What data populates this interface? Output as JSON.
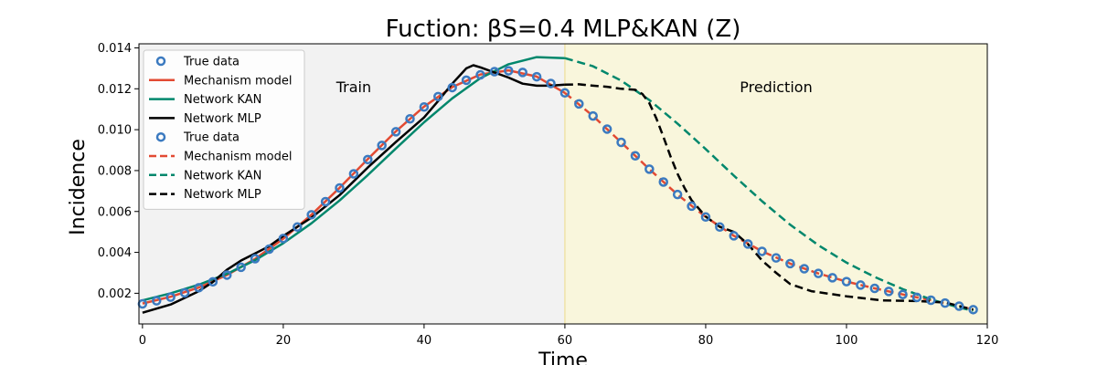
{
  "chart_data": {
    "type": "line",
    "title": "Fuction: βS=0.4 MLP&KAN (Z)",
    "xlabel": "Time",
    "ylabel": "Incidence",
    "xlim": [
      -0.5,
      120
    ],
    "ylim": [
      0.0005,
      0.0142
    ],
    "xticks": [
      0,
      20,
      40,
      60,
      80,
      100,
      120
    ],
    "yticks": [
      0.002,
      0.004,
      0.006,
      0.008,
      0.01,
      0.012,
      0.014
    ],
    "ytick_format": 3,
    "grid": false,
    "legend_position": "top-left",
    "regions": [
      {
        "label": "Train",
        "x0": -0.5,
        "x1": 60,
        "color": "#f2f2f2",
        "label_x": 30,
        "label_y": 0.0121
      },
      {
        "label": "Prediction",
        "x0": 60,
        "x1": 120,
        "color": "#f9f6dc",
        "label_x": 90,
        "label_y": 0.0121
      }
    ],
    "true_data": {
      "x": [
        0,
        2,
        4,
        6,
        8,
        10,
        12,
        14,
        16,
        18,
        20,
        22,
        24,
        26,
        28,
        30,
        32,
        34,
        36,
        38,
        40,
        42,
        44,
        46,
        48,
        50,
        52,
        54,
        56,
        58,
        60,
        62,
        64,
        66,
        68,
        70,
        72,
        74,
        76,
        78,
        80,
        82,
        84,
        86,
        88,
        90,
        92,
        94,
        96,
        98,
        100,
        102,
        104,
        106,
        108,
        110,
        112,
        114,
        116,
        118
      ],
      "y": [
        0.00148,
        0.00163,
        0.00181,
        0.00202,
        0.00227,
        0.00256,
        0.00289,
        0.00327,
        0.00369,
        0.00416,
        0.00468,
        0.00524,
        0.00584,
        0.00648,
        0.00715,
        0.00784,
        0.00854,
        0.00923,
        0.0099,
        0.01053,
        0.01111,
        0.01162,
        0.01206,
        0.01242,
        0.01268,
        0.01284,
        0.01288,
        0.0128,
        0.01259,
        0.01226,
        0.0118,
        0.01126,
        0.01067,
        0.01003,
        0.00938,
        0.00872,
        0.00807,
        0.00744,
        0.00683,
        0.00626,
        0.00573,
        0.00524,
        0.00481,
        0.00441,
        0.00405,
        0.00373,
        0.00345,
        0.0032,
        0.00297,
        0.00276,
        0.00257,
        0.0024,
        0.00224,
        0.00209,
        0.00194,
        0.0018,
        0.00166,
        0.00152,
        0.00137,
        0.0012
      ]
    },
    "series": [
      {
        "name": "Mechanism model",
        "color": "#e24a33",
        "dash": false,
        "x": [
          0,
          4,
          8,
          12,
          16,
          20,
          24,
          28,
          32,
          36,
          40,
          44,
          48,
          52,
          56,
          60
        ],
        "y": [
          0.0015,
          0.00183,
          0.00228,
          0.00289,
          0.00368,
          0.00467,
          0.00584,
          0.00716,
          0.00856,
          0.00992,
          0.01113,
          0.01208,
          0.0127,
          0.0129,
          0.0126,
          0.0118
        ]
      },
      {
        "name": "Network KAN",
        "color": "#00876c",
        "dash": false,
        "x": [
          0,
          4,
          8,
          12,
          16,
          20,
          24,
          28,
          32,
          36,
          40,
          44,
          48,
          52,
          56,
          60
        ],
        "y": [
          0.00165,
          0.002,
          0.00242,
          0.00295,
          0.00362,
          0.00445,
          0.00542,
          0.00654,
          0.00778,
          0.00908,
          0.01036,
          0.01153,
          0.01252,
          0.0132,
          0.01355,
          0.0135
        ]
      },
      {
        "name": "Network MLP",
        "color": "#000000",
        "dash": false,
        "x": [
          0,
          4,
          8,
          10,
          12,
          14,
          16,
          18,
          20,
          24,
          28,
          32,
          36,
          40,
          42,
          44,
          46,
          47,
          48,
          50,
          52,
          54,
          56,
          58,
          60
        ],
        "y": [
          0.00105,
          0.00145,
          0.0021,
          0.00255,
          0.00315,
          0.0036,
          0.00395,
          0.0043,
          0.0048,
          0.0057,
          0.0068,
          0.00815,
          0.0094,
          0.0106,
          0.0114,
          0.01225,
          0.013,
          0.01315,
          0.01305,
          0.0128,
          0.01255,
          0.01225,
          0.01215,
          0.01215,
          0.0122
        ]
      },
      {
        "name": "Mechanism model",
        "color": "#e24a33",
        "dash": true,
        "x": [
          60,
          64,
          68,
          72,
          76,
          80,
          84,
          88,
          92,
          96,
          100,
          104,
          108,
          112,
          116,
          118
        ],
        "y": [
          0.0118,
          0.01067,
          0.00938,
          0.00807,
          0.00683,
          0.00573,
          0.00481,
          0.00405,
          0.00345,
          0.00297,
          0.00257,
          0.00224,
          0.00194,
          0.00166,
          0.00137,
          0.0012
        ]
      },
      {
        "name": "Network KAN",
        "color": "#00876c",
        "dash": true,
        "x": [
          60,
          64,
          68,
          72,
          76,
          80,
          84,
          88,
          92,
          96,
          100,
          104,
          108,
          112,
          116,
          118
        ],
        "y": [
          0.0135,
          0.0131,
          0.0124,
          0.01145,
          0.0103,
          0.00905,
          0.00775,
          0.0065,
          0.00535,
          0.00435,
          0.0035,
          0.0028,
          0.0022,
          0.0017,
          0.0013,
          0.00115
        ]
      },
      {
        "name": "Network MLP",
        "color": "#000000",
        "dash": true,
        "x": [
          60,
          62,
          64,
          66,
          68,
          70,
          71,
          72,
          73,
          74,
          75,
          76,
          77,
          78,
          80,
          82,
          84,
          86,
          88,
          90,
          92,
          95,
          100,
          105,
          110,
          114,
          118
        ],
        "y": [
          0.0122,
          0.01222,
          0.01215,
          0.0121,
          0.012,
          0.01195,
          0.01175,
          0.0113,
          0.01055,
          0.00965,
          0.0087,
          0.00785,
          0.00715,
          0.00655,
          0.00575,
          0.00525,
          0.005,
          0.0044,
          0.0036,
          0.003,
          0.00245,
          0.0021,
          0.00185,
          0.00165,
          0.00162,
          0.00155,
          0.0012
        ]
      }
    ],
    "legend": [
      {
        "label": "True data",
        "kind": "marker",
        "color": "#3b7ac0"
      },
      {
        "label": "Mechanism model",
        "kind": "solid",
        "color": "#e24a33"
      },
      {
        "label": "Network KAN",
        "kind": "solid",
        "color": "#00876c"
      },
      {
        "label": "Network MLP",
        "kind": "solid",
        "color": "#000000"
      },
      {
        "label": "True data",
        "kind": "marker",
        "color": "#3b7ac0"
      },
      {
        "label": "Mechanism model",
        "kind": "dashed",
        "color": "#e24a33"
      },
      {
        "label": "Network KAN",
        "kind": "dashed",
        "color": "#00876c"
      },
      {
        "label": "Network MLP",
        "kind": "dashed",
        "color": "#000000"
      }
    ]
  }
}
